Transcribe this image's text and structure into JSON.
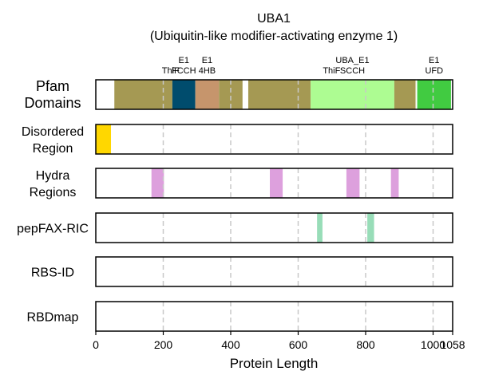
{
  "chart_data": {
    "type": "track",
    "title": "UBA1",
    "subtitle": "(Ubiquitin-like modifier-activating enzyme 1)",
    "xlabel": "Protein Length",
    "xlim": [
      0,
      1058
    ],
    "xticks": [
      0,
      200,
      400,
      600,
      800,
      1000,
      1058
    ],
    "grid": true,
    "tracks": [
      {
        "label_lines": [
          "Pfam",
          "Domains"
        ],
        "features": [
          {
            "start": 55,
            "end": 227,
            "color": "#a59953"
          },
          {
            "start": 227,
            "end": 295,
            "color": "#004c6d"
          },
          {
            "start": 295,
            "end": 365,
            "color": "#c6956c"
          },
          {
            "start": 365,
            "end": 435,
            "color": "#a59953"
          },
          {
            "start": 452,
            "end": 637,
            "color": "#a59953"
          },
          {
            "start": 637,
            "end": 885,
            "color": "#adfc92"
          },
          {
            "start": 885,
            "end": 948,
            "color": "#a59953"
          },
          {
            "start": 953,
            "end": 1053,
            "color": "#41cb41"
          }
        ],
        "annotations": [
          {
            "lines": [
              "",
              "ThiF"
            ],
            "pos": 222
          },
          {
            "lines": [
              "E1",
              "FCCH"
            ],
            "pos": 261
          },
          {
            "lines": [
              "E1",
              "4HB"
            ],
            "pos": 330
          },
          {
            "lines": [
              "",
              "ThiF"
            ],
            "pos": 699
          },
          {
            "lines": [
              "UBA_E1",
              "SCCH"
            ],
            "pos": 761
          },
          {
            "lines": [
              "E1",
              "UFD"
            ],
            "pos": 1003
          }
        ]
      },
      {
        "label_lines": [
          "Disordered",
          "Region"
        ],
        "features": [
          {
            "start": 0,
            "end": 45,
            "color": "#ffd700"
          }
        ]
      },
      {
        "label_lines": [
          "Hydra",
          "Regions"
        ],
        "features": [
          {
            "start": 165,
            "end": 202,
            "color": "#dda0dd"
          },
          {
            "start": 516,
            "end": 554,
            "color": "#dda0dd"
          },
          {
            "start": 743,
            "end": 782,
            "color": "#dda0dd"
          },
          {
            "start": 875,
            "end": 898,
            "color": "#dda0dd"
          }
        ]
      },
      {
        "label_lines": [
          "pepFAX-RIC"
        ],
        "features": [
          {
            "start": 656,
            "end": 672,
            "color": "#98ddb8"
          },
          {
            "start": 805,
            "end": 825,
            "color": "#98ddb8"
          }
        ]
      },
      {
        "label_lines": [
          "RBS-ID"
        ],
        "features": []
      },
      {
        "label_lines": [
          "RBDmap"
        ],
        "features": []
      }
    ]
  }
}
